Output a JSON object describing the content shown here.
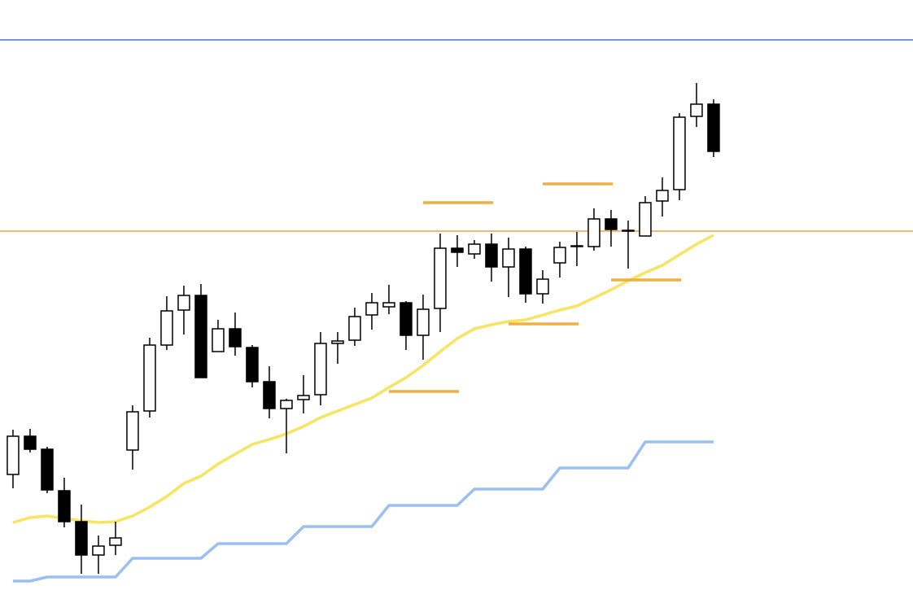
{
  "chart_data": {
    "type": "candlestick",
    "x": [
      1,
      2,
      3,
      4,
      5,
      6,
      7,
      8,
      9,
      10,
      11,
      12,
      13,
      14,
      15,
      16,
      17,
      18,
      19,
      20,
      21,
      22,
      23,
      24,
      25,
      26,
      27,
      28,
      29,
      30,
      31,
      32,
      33,
      34,
      35,
      36,
      37,
      38,
      39,
      40,
      41,
      42
    ],
    "open": [
      169,
      216,
      200,
      149,
      111,
      70,
      82,
      199,
      247,
      328,
      371,
      389,
      320,
      348,
      325,
      283,
      250,
      261,
      267,
      330,
      334,
      365,
      375,
      380,
      340,
      373,
      447,
      440,
      452,
      424,
      446,
      391,
      429,
      449,
      449,
      483,
      469,
      462,
      505,
      519,
      609,
      624
    ],
    "high": [
      224,
      225,
      203,
      165,
      132,
      94,
      111,
      254,
      337,
      388,
      401,
      403,
      359,
      368,
      328,
      302,
      262,
      291,
      344,
      344,
      374,
      392,
      402,
      382,
      390,
      465,
      463,
      457,
      465,
      460,
      449,
      420,
      455,
      467,
      496,
      494,
      481,
      511,
      534,
      613,
      650,
      630
    ],
    "low": [
      152,
      196,
      146,
      104,
      47,
      47,
      70,
      175,
      239,
      322,
      341,
      288,
      320,
      315,
      276,
      238,
      195,
      244,
      254,
      305,
      327,
      347,
      366,
      322,
      310,
      344,
      424,
      434,
      406,
      387,
      380,
      379,
      411,
      425,
      444,
      449,
      422,
      462,
      486,
      506,
      596,
      559
    ],
    "close": [
      216,
      200,
      150,
      111,
      70,
      81,
      91,
      246,
      328,
      370,
      389,
      288,
      348,
      326,
      283,
      250,
      260,
      266,
      330,
      333,
      363,
      380,
      380,
      340,
      372,
      447,
      442,
      452,
      424,
      446,
      391,
      409,
      448,
      450,
      483,
      470,
      469,
      503,
      518,
      608,
      624,
      566
    ],
    "up_color": "#ffffff",
    "down_color": "#000000",
    "lines": [
      {
        "color": "#f7e461",
        "values": [
          110,
          116,
          118,
          115,
          112,
          110,
          111,
          118,
          129,
          142,
          158,
          167,
          182,
          194,
          206,
          212,
          219,
          228,
          239,
          247,
          255,
          263,
          276,
          288,
          303,
          320,
          336,
          348,
          353,
          357,
          359,
          365,
          371,
          376,
          386,
          396,
          407,
          417,
          426,
          439,
          452,
          463
        ]
      },
      {
        "color": "#9bbff0",
        "values": [
          38,
          38,
          43,
          43,
          43,
          43,
          43,
          66,
          66,
          66,
          66,
          66,
          84,
          84,
          84,
          84,
          84,
          105,
          105,
          105,
          105,
          105,
          131,
          131,
          131,
          131,
          131,
          151,
          151,
          151,
          151,
          151,
          177,
          177,
          177,
          177,
          177,
          209,
          209,
          209,
          209,
          209
        ]
      }
    ],
    "levels": [
      {
        "value": 703,
        "color": "#4a6fc9"
      },
      {
        "value": 468,
        "color": "#f0a04b"
      }
    ],
    "segments": [
      {
        "value": 503,
        "x": [
          25,
          29.1
        ],
        "color": "#eeb044"
      },
      {
        "value": 526,
        "x": [
          32,
          36.1
        ],
        "color": "#eeb044"
      },
      {
        "value": 408,
        "x": [
          36,
          40.1
        ],
        "color": "#eeb044"
      },
      {
        "value": 354,
        "x": [
          30,
          34.1
        ],
        "color": "#eeb044"
      },
      {
        "value": 271,
        "x": [
          23,
          27.1
        ],
        "color": "#eeb044"
      }
    ],
    "xlim": [
      0.24,
      53.67
    ],
    "ylim": [
      0,
      752
    ]
  }
}
